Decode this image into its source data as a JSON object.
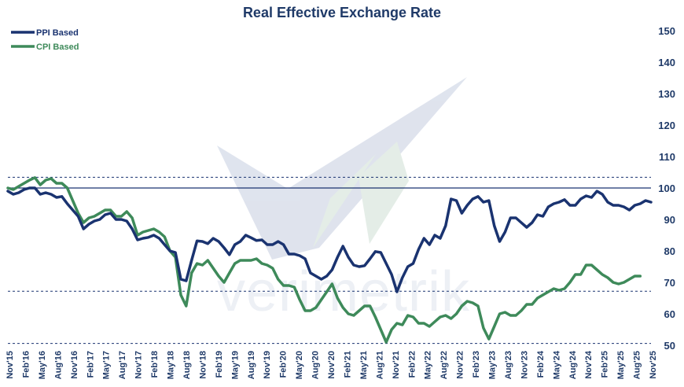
{
  "chart_data": {
    "type": "line",
    "title": "Real Effective Exchange Rate",
    "ylim": [
      50,
      150
    ],
    "yticks": [
      50,
      60,
      70,
      80,
      90,
      100,
      110,
      120,
      130,
      140,
      150
    ],
    "y_axis_side": "right",
    "legend_position": "top-left",
    "watermark": "verimetrik",
    "colors": {
      "ppi": "#1a3370",
      "cpi": "#3e8a5a",
      "title": "#1f3a68",
      "reference": "#1a3370",
      "watermark": "#c5cde0"
    },
    "x_labels": [
      "Nov'15",
      "Feb'16",
      "May'16",
      "Aug'16",
      "Nov'16",
      "Feb'17",
      "May'17",
      "Aug'17",
      "Nov'17",
      "Feb'18",
      "May'18",
      "Aug'18",
      "Nov'18",
      "Feb'19",
      "May'19",
      "Aug'19",
      "Nov'19",
      "Feb'20",
      "May'20",
      "Aug'20",
      "Nov'20",
      "Feb'21",
      "May'21",
      "Aug'21",
      "Nov'21",
      "Feb'22",
      "May'22",
      "Aug'22",
      "Nov'22",
      "Feb'23",
      "May'23",
      "Aug'23",
      "Nov'23",
      "Feb'24",
      "May'24",
      "Aug'24",
      "Nov'24",
      "Feb'25",
      "May'25",
      "Aug'25",
      "Nov'25"
    ],
    "reference_lines": [
      {
        "value": 100,
        "style": "solid"
      },
      {
        "value": 103.4,
        "style": "dashed"
      },
      {
        "value": 67.2,
        "style": "dashed"
      },
      {
        "value": 50.6,
        "style": "dashed"
      }
    ],
    "series": [
      {
        "name": "PPI Based",
        "color": "#1a3370",
        "values": [
          99,
          98,
          98.5,
          99.5,
          100,
          100,
          98,
          98.5,
          98,
          97,
          97.3,
          95,
          93,
          91,
          87,
          88.5,
          89.5,
          90,
          91.5,
          92,
          90,
          90,
          89.5,
          87,
          83.5,
          84,
          84.3,
          85,
          84,
          82,
          80,
          79.5,
          71,
          70.5,
          77,
          83.2,
          83,
          82.3,
          84,
          83,
          81,
          78.8,
          82,
          83,
          85,
          84.2,
          83.3,
          83.5,
          82,
          82,
          83,
          82,
          79,
          79,
          78.5,
          77.5,
          73,
          72,
          71,
          72,
          74,
          78,
          81.5,
          78,
          75.5,
          75,
          75.3,
          77.5,
          79.8,
          79.5,
          76,
          72.5,
          67,
          71.5,
          75,
          76,
          80.5,
          84,
          82,
          85,
          84,
          88,
          96.5,
          96,
          92,
          94.5,
          96.5,
          97.3,
          95.5,
          96,
          88,
          83,
          86,
          90.5,
          90.5,
          89,
          87.5,
          89,
          91.5,
          91,
          94,
          95,
          95.5,
          96.3,
          94.5,
          94.5,
          96.5,
          97.5,
          97,
          99,
          98,
          95.5,
          94.5,
          94.5,
          94,
          93,
          94.5,
          95,
          96,
          95.5
        ]
      },
      {
        "name": "CPI Based",
        "color": "#3e8a5a",
        "values": [
          100,
          99.5,
          100.5,
          101.5,
          102.5,
          103.3,
          101,
          102.5,
          103,
          101.5,
          101.5,
          100,
          96,
          92,
          89,
          90.5,
          91,
          92,
          93,
          93,
          91,
          91,
          92.5,
          90.5,
          85,
          86,
          86.5,
          87,
          86,
          84.5,
          80,
          78,
          66,
          62.5,
          73,
          76,
          75.5,
          77,
          74.5,
          72,
          70,
          73,
          76,
          77,
          77,
          77,
          77.5,
          76,
          75.5,
          74.5,
          71,
          69,
          69,
          68.5,
          64.5,
          61,
          61,
          62,
          64.5,
          67,
          69.5,
          65,
          62,
          60,
          59.5,
          61,
          62.5,
          62.5,
          59,
          55,
          51,
          55,
          57,
          56.5,
          59.5,
          59,
          57,
          57,
          56,
          57.5,
          59,
          59.5,
          58.5,
          60,
          62.5,
          64,
          63.5,
          62.5,
          55.5,
          52,
          56,
          60,
          60.5,
          59.5,
          59.5,
          61,
          63,
          63,
          65,
          66,
          67,
          68,
          67.5,
          68,
          70,
          72.5,
          72.5,
          75.5,
          75.5,
          74,
          72.5,
          71.5,
          70,
          69.5,
          70,
          71,
          72,
          72
        ]
      }
    ]
  }
}
